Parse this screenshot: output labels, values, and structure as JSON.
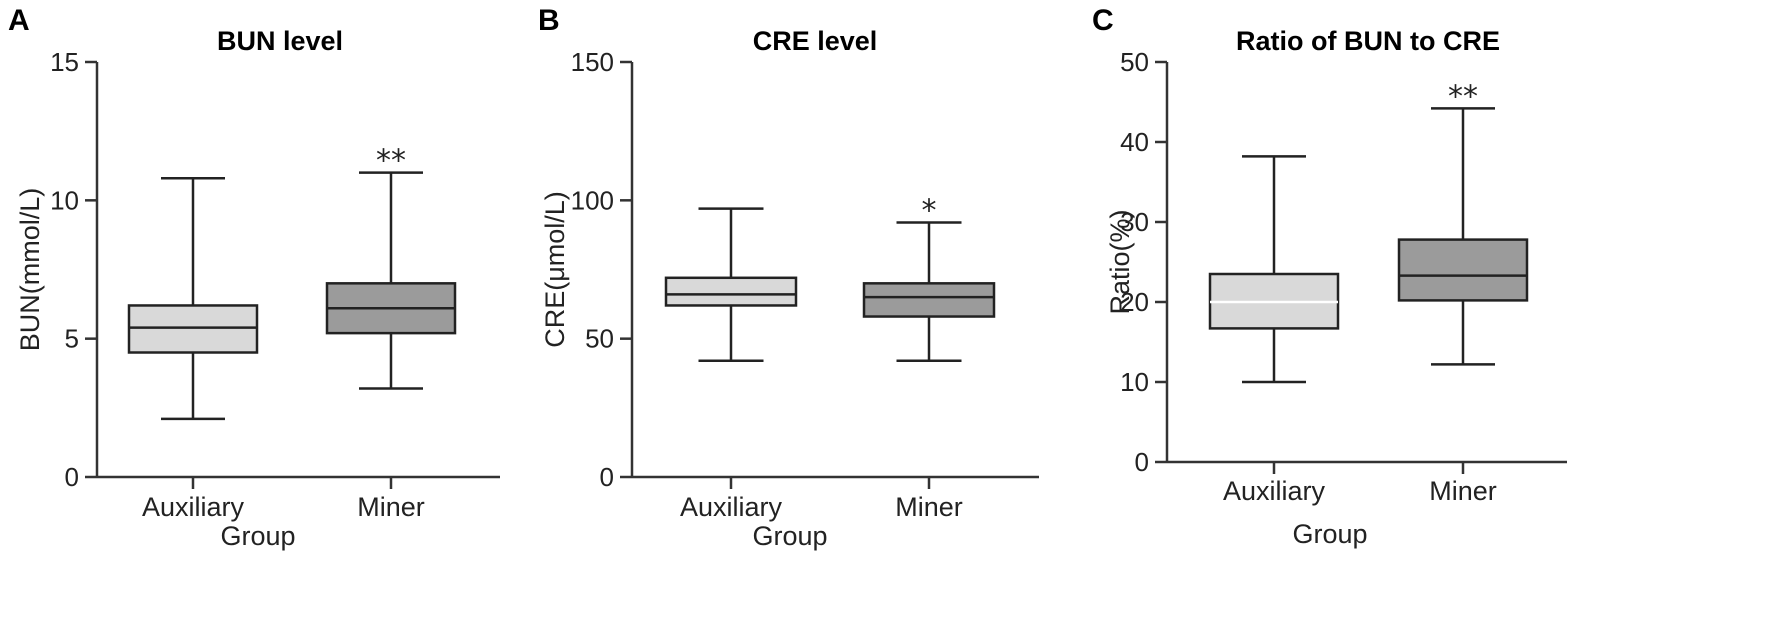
{
  "chart_data": [
    {
      "type": "box",
      "panel": "A",
      "title": "BUN level",
      "ylabel": "BUN(mmol/L)",
      "xlabel": "Group",
      "ylim": [
        0,
        15
      ],
      "yticks": [
        0,
        5,
        10,
        15
      ],
      "categories": [
        "Auxiliary",
        "Miner"
      ],
      "boxes": [
        {
          "category": "Auxiliary",
          "min": 2.1,
          "q1": 4.5,
          "median": 5.4,
          "q3": 6.2,
          "max": 10.8,
          "color": "#d9d9d9",
          "significance": ""
        },
        {
          "category": "Miner",
          "min": 3.2,
          "q1": 5.2,
          "median": 6.1,
          "q3": 7.0,
          "max": 11.0,
          "color": "#9b9b9b",
          "significance": "**"
        }
      ]
    },
    {
      "type": "box",
      "panel": "B",
      "title": "CRE level",
      "ylabel": "CRE(μmol/L)",
      "xlabel": "Group",
      "ylim": [
        0,
        150
      ],
      "yticks": [
        0,
        50,
        100,
        150
      ],
      "categories": [
        "Auxiliary",
        "Miner"
      ],
      "boxes": [
        {
          "category": "Auxiliary",
          "min": 42,
          "q1": 62,
          "median": 66,
          "q3": 72,
          "max": 97,
          "color": "#d9d9d9",
          "significance": ""
        },
        {
          "category": "Miner",
          "min": 42,
          "q1": 58,
          "median": 65,
          "q3": 70,
          "max": 92,
          "color": "#9b9b9b",
          "significance": "*"
        }
      ]
    },
    {
      "type": "box",
      "panel": "C",
      "title": "Ratio of BUN to CRE",
      "ylabel": "Ratio(%)",
      "xlabel": "Group",
      "ylim": [
        0,
        50
      ],
      "yticks": [
        0,
        10,
        20,
        30,
        40,
        50
      ],
      "categories": [
        "Auxiliary",
        "Miner"
      ],
      "boxes": [
        {
          "category": "Auxiliary",
          "min": 10,
          "q1": 16.7,
          "median": 20,
          "q3": 23.5,
          "max": 38.2,
          "color": "#d9d9d9",
          "significance": "",
          "median_color": "#ffffff"
        },
        {
          "category": "Miner",
          "min": 12.2,
          "q1": 20.2,
          "median": 23.3,
          "q3": 27.8,
          "max": 44.2,
          "color": "#9b9b9b",
          "significance": "**"
        }
      ]
    }
  ]
}
